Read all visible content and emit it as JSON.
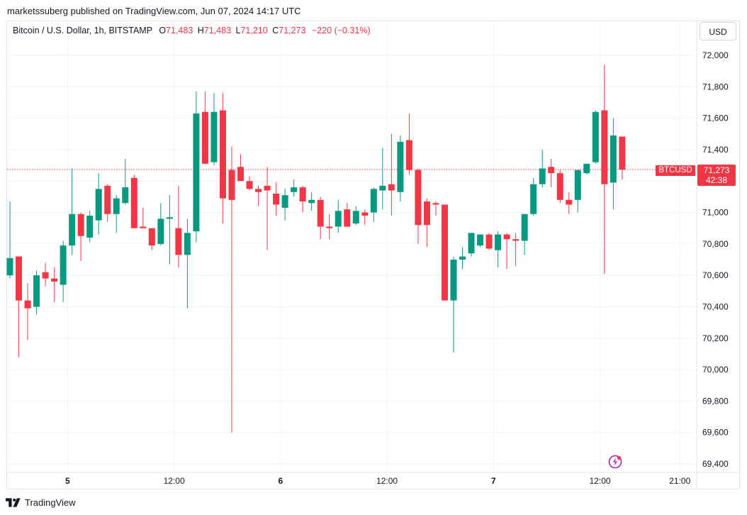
{
  "header": {
    "published": "marketssuberg published on TradingView.com, Jun 07, 2024 14:17 UTC"
  },
  "legend": {
    "symbol": "Bitcoin / U.S. Dollar, 1h, BITSTAMP",
    "o_label": "O",
    "o_value": "71,483",
    "h_label": "H",
    "h_value": "71,483",
    "l_label": "L",
    "l_value": "71,210",
    "c_label": "C",
    "c_value": "71,273",
    "change": "−220 (−0.31%)"
  },
  "currency_button": "USD",
  "last_price": {
    "symbol": "BTCUSD",
    "price": "71,273",
    "countdown": "42:38"
  },
  "footer": {
    "brand": "TradingView"
  },
  "colors": {
    "up": "#089981",
    "down": "#f23645",
    "grid": "#f0f3fa",
    "axis_text": "#131722",
    "flash": "#9c27b0"
  },
  "icons": {
    "footer_logo": "tradingview-logo-icon",
    "flash": "flash-icon"
  },
  "chart_data": {
    "type": "candlestick",
    "title": "Bitcoin / U.S. Dollar, 1h, BITSTAMP",
    "ylim": [
      69360,
      72160
    ],
    "y_ticks": [
      69400,
      69600,
      69800,
      70000,
      70200,
      70400,
      70600,
      70800,
      71000,
      71200,
      71400,
      71600,
      71800,
      72000
    ],
    "y_tick_labels": [
      "69,400",
      "69,600",
      "69,800",
      "70,000",
      "70,200",
      "70,400",
      "70,600",
      "70,800",
      "71,000",
      "71,200",
      "71,400",
      "71,600",
      "71,800",
      "72,000"
    ],
    "x_ticks": [
      {
        "index": 6.5,
        "label": "5",
        "bold": true
      },
      {
        "index": 18.5,
        "label": "12:00",
        "bold": false
      },
      {
        "index": 30.5,
        "label": "6",
        "bold": true
      },
      {
        "index": 42.5,
        "label": "12:00",
        "bold": false
      },
      {
        "index": 54.5,
        "label": "7",
        "bold": true
      },
      {
        "index": 66.5,
        "label": "12:00",
        "bold": false
      },
      {
        "index": 75.5,
        "label": "21:00",
        "bold": false
      }
    ],
    "last_price": 71273,
    "candles": [
      {
        "o": 70600,
        "h": 71070,
        "l": 70580,
        "c": 70710
      },
      {
        "o": 70720,
        "h": 70720,
        "l": 70080,
        "c": 70440
      },
      {
        "o": 70440,
        "h": 70550,
        "l": 70190,
        "c": 70390
      },
      {
        "o": 70400,
        "h": 70630,
        "l": 70350,
        "c": 70600
      },
      {
        "o": 70620,
        "h": 70680,
        "l": 70530,
        "c": 70580
      },
      {
        "o": 70580,
        "h": 70650,
        "l": 70430,
        "c": 70560
      },
      {
        "o": 70540,
        "h": 70820,
        "l": 70430,
        "c": 70790
      },
      {
        "o": 70790,
        "h": 71280,
        "l": 70730,
        "c": 70990
      },
      {
        "o": 70990,
        "h": 71000,
        "l": 70690,
        "c": 70850
      },
      {
        "o": 70840,
        "h": 71010,
        "l": 70810,
        "c": 70980
      },
      {
        "o": 70950,
        "h": 71250,
        "l": 70860,
        "c": 71150
      },
      {
        "o": 71170,
        "h": 71180,
        "l": 70940,
        "c": 70990
      },
      {
        "o": 70990,
        "h": 71110,
        "l": 70870,
        "c": 71090
      },
      {
        "o": 71060,
        "h": 71340,
        "l": 71050,
        "c": 71160
      },
      {
        "o": 71220,
        "h": 71240,
        "l": 70910,
        "c": 70900
      },
      {
        "o": 70910,
        "h": 71030,
        "l": 70900,
        "c": 70900
      },
      {
        "o": 70900,
        "h": 70900,
        "l": 70760,
        "c": 70790
      },
      {
        "o": 70800,
        "h": 71060,
        "l": 70790,
        "c": 70960
      },
      {
        "o": 70960,
        "h": 71110,
        "l": 70670,
        "c": 70970
      },
      {
        "o": 70900,
        "h": 71170,
        "l": 70650,
        "c": 70730
      },
      {
        "o": 70730,
        "h": 70960,
        "l": 70390,
        "c": 70870
      },
      {
        "o": 70880,
        "h": 71770,
        "l": 70810,
        "c": 71630
      },
      {
        "o": 71640,
        "h": 71770,
        "l": 71310,
        "c": 71310
      },
      {
        "o": 71320,
        "h": 71760,
        "l": 71300,
        "c": 71640
      },
      {
        "o": 71650,
        "h": 71760,
        "l": 70930,
        "c": 71090
      },
      {
        "o": 71270,
        "h": 71420,
        "l": 69600,
        "c": 71080
      },
      {
        "o": 71290,
        "h": 71370,
        "l": 71210,
        "c": 71200
      },
      {
        "o": 71200,
        "h": 71230,
        "l": 71140,
        "c": 71150
      },
      {
        "o": 71150,
        "h": 71170,
        "l": 71040,
        "c": 71130
      },
      {
        "o": 71170,
        "h": 71290,
        "l": 70760,
        "c": 71140
      },
      {
        "o": 71120,
        "h": 71190,
        "l": 70980,
        "c": 71050
      },
      {
        "o": 71030,
        "h": 71150,
        "l": 70950,
        "c": 71110
      },
      {
        "o": 71130,
        "h": 71210,
        "l": 71100,
        "c": 71160
      },
      {
        "o": 71160,
        "h": 71170,
        "l": 71000,
        "c": 71070
      },
      {
        "o": 71060,
        "h": 71130,
        "l": 71010,
        "c": 71080
      },
      {
        "o": 71080,
        "h": 71100,
        "l": 70830,
        "c": 70910
      },
      {
        "o": 70910,
        "h": 70990,
        "l": 70830,
        "c": 70900
      },
      {
        "o": 70910,
        "h": 71080,
        "l": 70870,
        "c": 71010
      },
      {
        "o": 71020,
        "h": 71060,
        "l": 70910,
        "c": 70910
      },
      {
        "o": 70930,
        "h": 71040,
        "l": 70920,
        "c": 71010
      },
      {
        "o": 71000,
        "h": 71020,
        "l": 70920,
        "c": 70980
      },
      {
        "o": 71000,
        "h": 71160,
        "l": 70940,
        "c": 71150
      },
      {
        "o": 71140,
        "h": 71410,
        "l": 71020,
        "c": 71170
      },
      {
        "o": 71180,
        "h": 71500,
        "l": 70980,
        "c": 71140
      },
      {
        "o": 71130,
        "h": 71490,
        "l": 71070,
        "c": 71450
      },
      {
        "o": 71460,
        "h": 71630,
        "l": 71240,
        "c": 71270
      },
      {
        "o": 71270,
        "h": 71280,
        "l": 70800,
        "c": 70920
      },
      {
        "o": 71070,
        "h": 71090,
        "l": 70780,
        "c": 70920
      },
      {
        "o": 71060,
        "h": 71070,
        "l": 70980,
        "c": 71050
      },
      {
        "o": 71050,
        "h": 71040,
        "l": 70450,
        "c": 70440
      },
      {
        "o": 70440,
        "h": 70720,
        "l": 70110,
        "c": 70700
      },
      {
        "o": 70700,
        "h": 70780,
        "l": 70640,
        "c": 70720
      },
      {
        "o": 70740,
        "h": 70870,
        "l": 70720,
        "c": 70870
      },
      {
        "o": 70790,
        "h": 70860,
        "l": 70780,
        "c": 70860
      },
      {
        "o": 70860,
        "h": 70870,
        "l": 70760,
        "c": 70770
      },
      {
        "o": 70760,
        "h": 70880,
        "l": 70650,
        "c": 70860
      },
      {
        "o": 70860,
        "h": 70870,
        "l": 70640,
        "c": 70830
      },
      {
        "o": 70830,
        "h": 70870,
        "l": 70660,
        "c": 70820
      },
      {
        "o": 70820,
        "h": 70970,
        "l": 70730,
        "c": 70990
      },
      {
        "o": 70990,
        "h": 71220,
        "l": 70980,
        "c": 71180
      },
      {
        "o": 71180,
        "h": 71400,
        "l": 71160,
        "c": 71280
      },
      {
        "o": 71290,
        "h": 71340,
        "l": 71160,
        "c": 71250
      },
      {
        "o": 71250,
        "h": 71270,
        "l": 71060,
        "c": 71080
      },
      {
        "o": 71080,
        "h": 71130,
        "l": 70990,
        "c": 71050
      },
      {
        "o": 71080,
        "h": 71270,
        "l": 71000,
        "c": 71270
      },
      {
        "o": 71250,
        "h": 71300,
        "l": 71240,
        "c": 71310
      },
      {
        "o": 71320,
        "h": 71650,
        "l": 71310,
        "c": 71640
      },
      {
        "o": 71650,
        "h": 71940,
        "l": 70610,
        "c": 71180
      },
      {
        "o": 71190,
        "h": 71600,
        "l": 71020,
        "c": 71490
      },
      {
        "o": 71483,
        "h": 71483,
        "l": 71210,
        "c": 71273
      }
    ]
  }
}
